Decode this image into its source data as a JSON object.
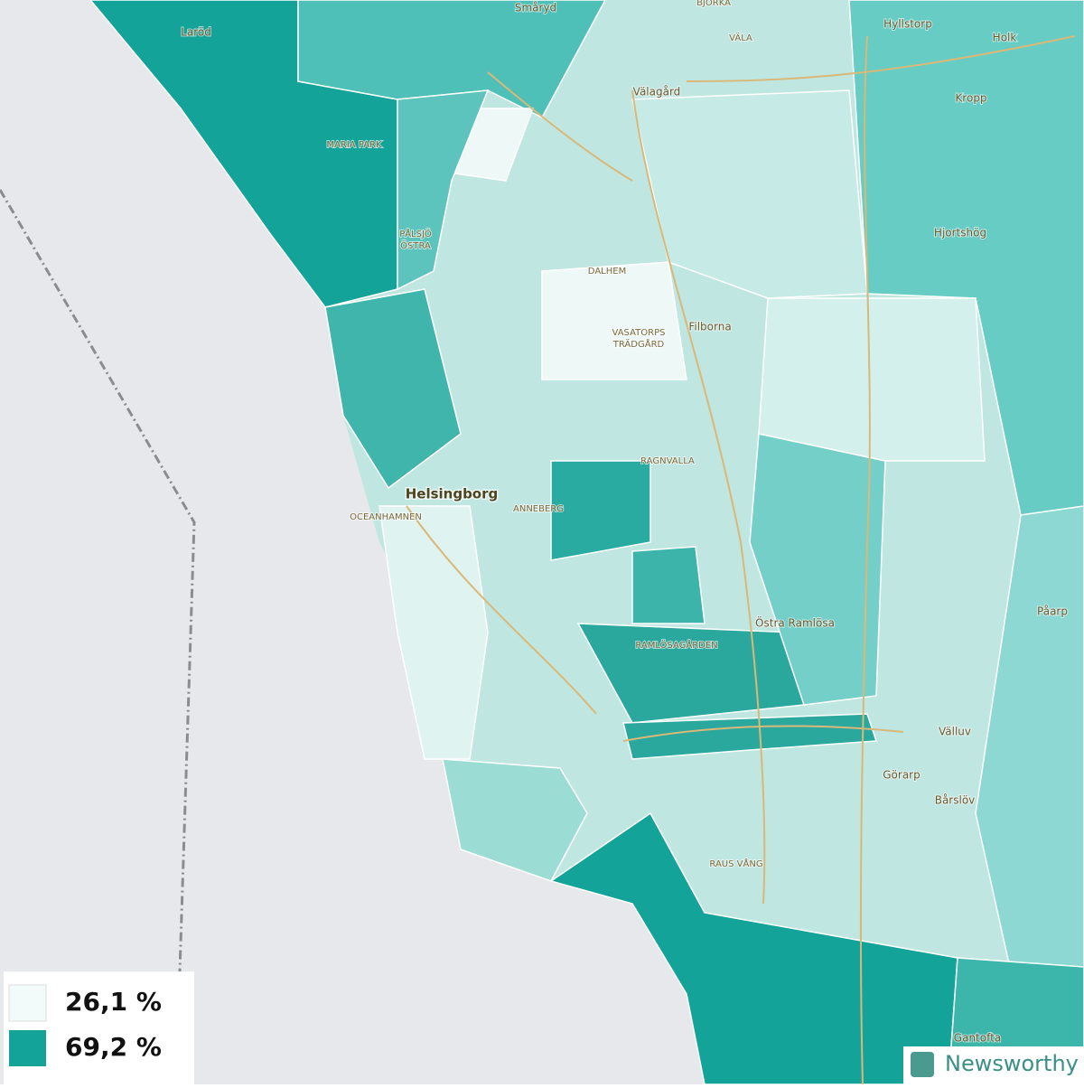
{
  "map": {
    "places": [
      "Laröd",
      "Småryd",
      "BJÖRKA",
      "VÄLA",
      "Hyllstorp",
      "Holk",
      "Välagård",
      "Kropp",
      "MARIA PARK",
      "PÅLSJÖ",
      "ÖSTRA",
      "Hjortshög",
      "DALHEM",
      "Filborna",
      "VASATORPS",
      "TRÄDGÅRD",
      "RAGNVALLA",
      "Helsingborg",
      "OCEANHAMNEN",
      "ANNEBERG",
      "Påarp",
      "Östra Ramlösa",
      "RAMLÖSAGÅRDEN",
      "Välluv",
      "Görarp",
      "Bårslöv",
      "RAUS VÅNG",
      "Gantofta"
    ],
    "legend": [
      {
        "label": "26,1 %",
        "color": "#f3fbfa"
      },
      {
        "label": "69,2 %",
        "color": "#14a399"
      }
    ],
    "brand": "Newsworthy"
  }
}
